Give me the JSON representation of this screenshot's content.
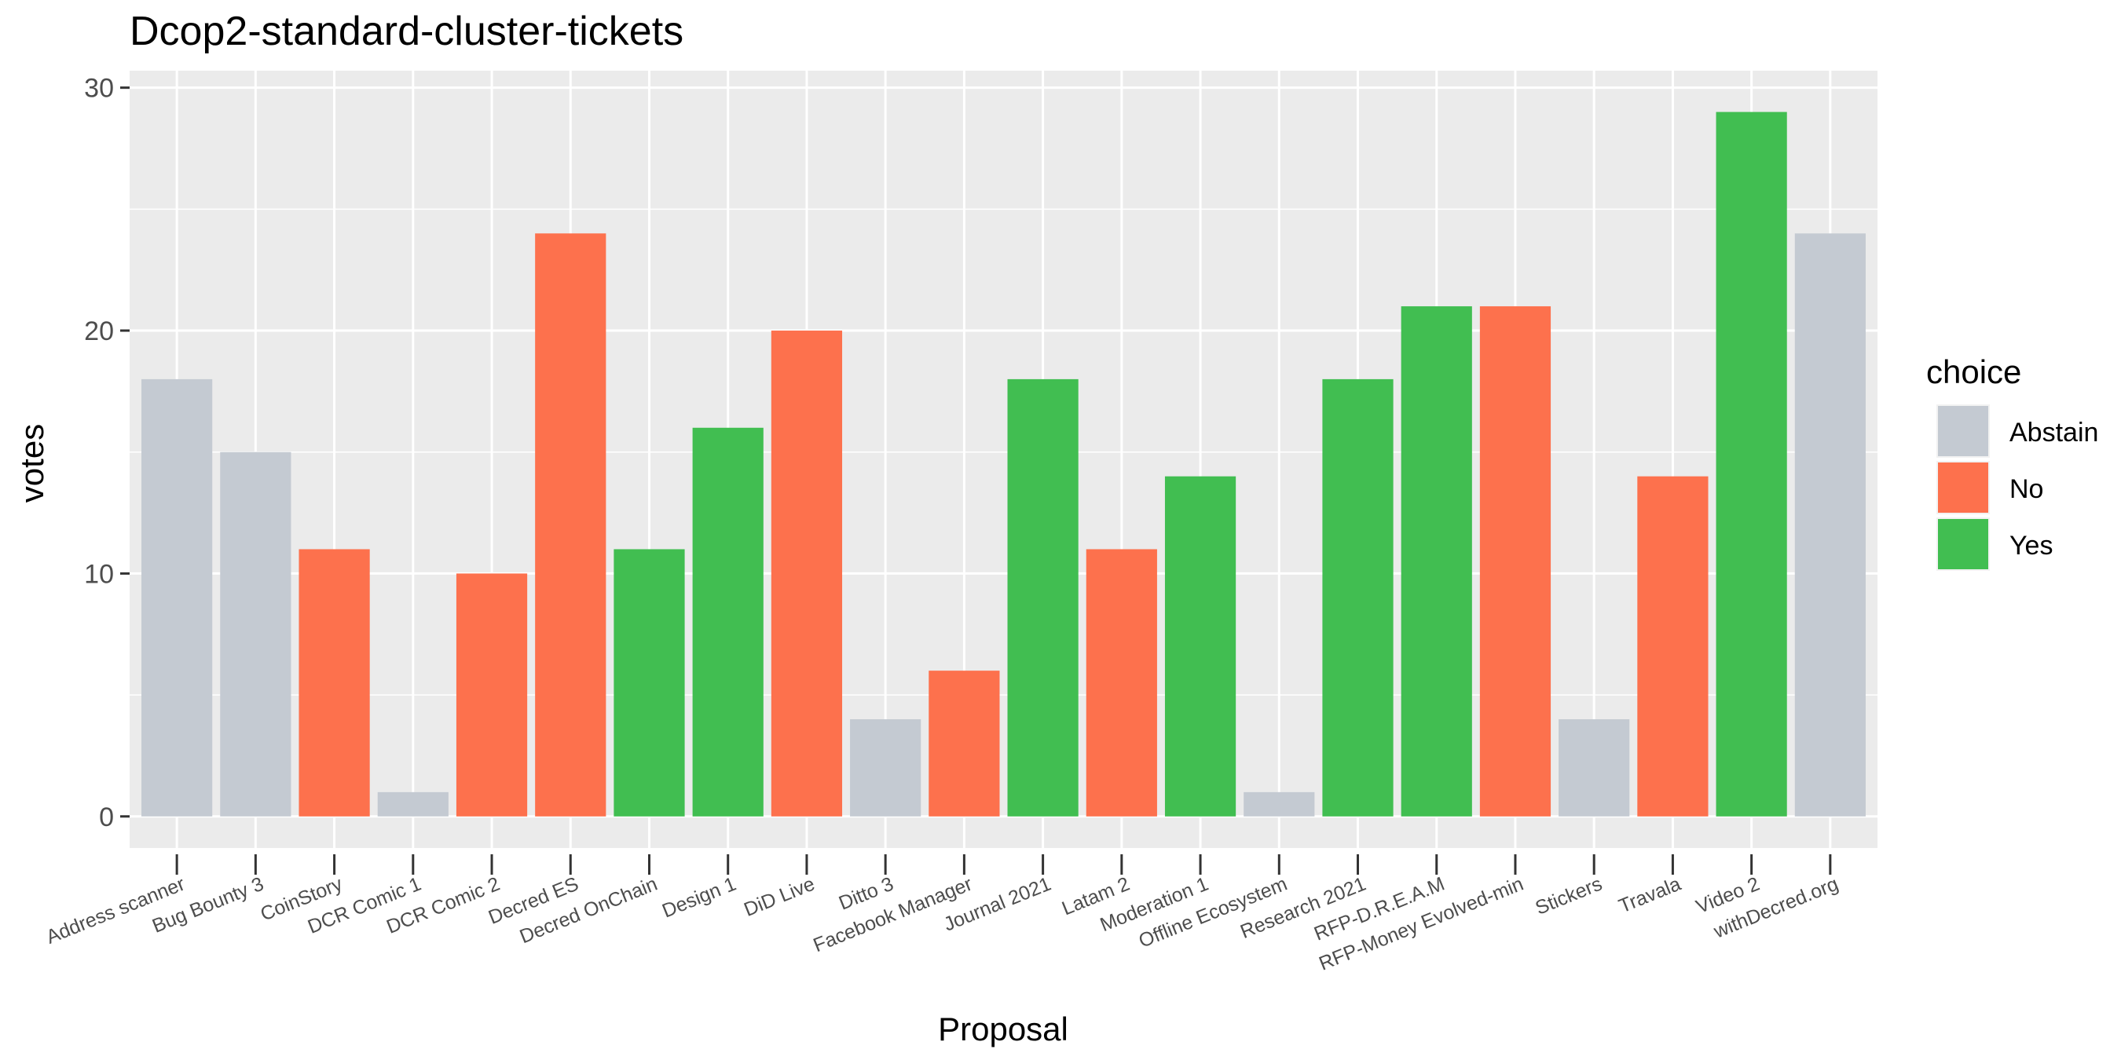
{
  "chart_data": {
    "type": "bar",
    "title": "Dcop2-standard-cluster-tickets",
    "xlabel": "Proposal",
    "ylabel": "votes",
    "ylim": [
      -1.3,
      30.7
    ],
    "yticks": [
      0,
      10,
      20,
      30
    ],
    "grid": true,
    "legend": {
      "title": "choice",
      "placement": "right",
      "entries": [
        "Abstain",
        "No",
        "Yes"
      ]
    },
    "colors": {
      "Abstain": "#C4CAD2",
      "No": "#FD714D",
      "Yes": "#41BE51"
    },
    "categories": [
      "Address scanner",
      "Bug Bounty 3",
      "CoinStory",
      "DCR Comic 1",
      "DCR Comic 2",
      "Decred ES",
      "Decred OnChain",
      "Design 1",
      "DiD Live",
      "Ditto 3",
      "Facebook Manager",
      "Journal 2021",
      "Latam 2",
      "Moderation 1",
      "Offline Ecosystem",
      "Research 2021",
      "RFP-D.R.E.A.M",
      "RFP-Money Evolved-min",
      "Stickers",
      "Travala",
      "Video 2",
      "withDecred.org"
    ],
    "values": [
      18,
      15,
      11,
      1,
      10,
      24,
      11,
      16,
      20,
      4,
      6,
      18,
      11,
      14,
      1,
      18,
      21,
      21,
      4,
      14,
      29,
      24
    ],
    "choices": [
      "Abstain",
      "Abstain",
      "No",
      "Abstain",
      "No",
      "No",
      "Yes",
      "Yes",
      "No",
      "Abstain",
      "No",
      "Yes",
      "No",
      "Yes",
      "Abstain",
      "Yes",
      "Yes",
      "No",
      "Abstain",
      "No",
      "Yes",
      "Abstain"
    ]
  }
}
